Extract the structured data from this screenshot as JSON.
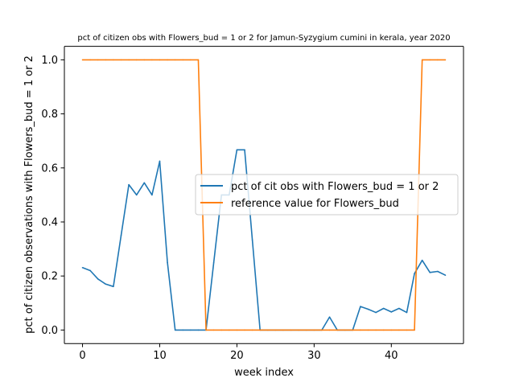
{
  "chart_data": {
    "type": "line",
    "title": "pct of citizen obs with Flowers_bud = 1 or 2 for Jamun-Syzygium cumini in kerala, year 2020",
    "xlabel": "week index",
    "ylabel": "pct of citizen observations with Flowers_bud = 1 or 2",
    "xlim": [
      -2.35,
      49.35
    ],
    "ylim": [
      -0.05,
      1.05
    ],
    "xticks": [
      0,
      10,
      20,
      30,
      40
    ],
    "xtick_labels": [
      "0",
      "10",
      "20",
      "30",
      "40"
    ],
    "yticks": [
      0.0,
      0.2,
      0.4,
      0.6,
      0.8,
      1.0
    ],
    "ytick_labels": [
      "0.0",
      "0.2",
      "0.4",
      "0.6",
      "0.8",
      "1.0"
    ],
    "grid": false,
    "legend_position": "center-right",
    "x": [
      0,
      1,
      2,
      3,
      4,
      5,
      6,
      7,
      8,
      9,
      10,
      11,
      12,
      13,
      14,
      15,
      16,
      17,
      18,
      19,
      20,
      21,
      22,
      23,
      24,
      25,
      26,
      27,
      28,
      29,
      30,
      31,
      32,
      33,
      34,
      35,
      36,
      37,
      38,
      39,
      40,
      41,
      42,
      43,
      44,
      45,
      46,
      47
    ],
    "series": [
      {
        "name": "pct of cit obs with Flowers_bud = 1 or 2",
        "color": "#1f77b4",
        "values": [
          0.231,
          0.22,
          0.189,
          0.17,
          0.161,
          0.35,
          0.538,
          0.5,
          0.545,
          0.5,
          0.625,
          0.25,
          0.0,
          0.0,
          0.0,
          0.0,
          0.0,
          0.25,
          0.5,
          0.5,
          0.667,
          0.667,
          0.333,
          0.0,
          0.0,
          0.0,
          0.0,
          0.0,
          0.0,
          0.0,
          0.0,
          0.0,
          0.048,
          0.0,
          0.0,
          0.0,
          0.087,
          0.077,
          0.065,
          0.08,
          0.067,
          0.08,
          0.065,
          0.209,
          0.258,
          0.213,
          0.217,
          0.203
        ]
      },
      {
        "name": "reference value for Flowers_bud",
        "color": "#ff7f0e",
        "values": [
          1,
          1,
          1,
          1,
          1,
          1,
          1,
          1,
          1,
          1,
          1,
          1,
          1,
          1,
          1,
          1,
          0,
          0,
          0,
          0,
          0,
          0,
          0,
          0,
          0,
          0,
          0,
          0,
          0,
          0,
          0,
          0,
          0,
          0,
          0,
          0,
          0,
          0,
          0,
          0,
          0,
          0,
          0,
          0,
          1,
          1,
          1,
          1
        ]
      }
    ]
  }
}
